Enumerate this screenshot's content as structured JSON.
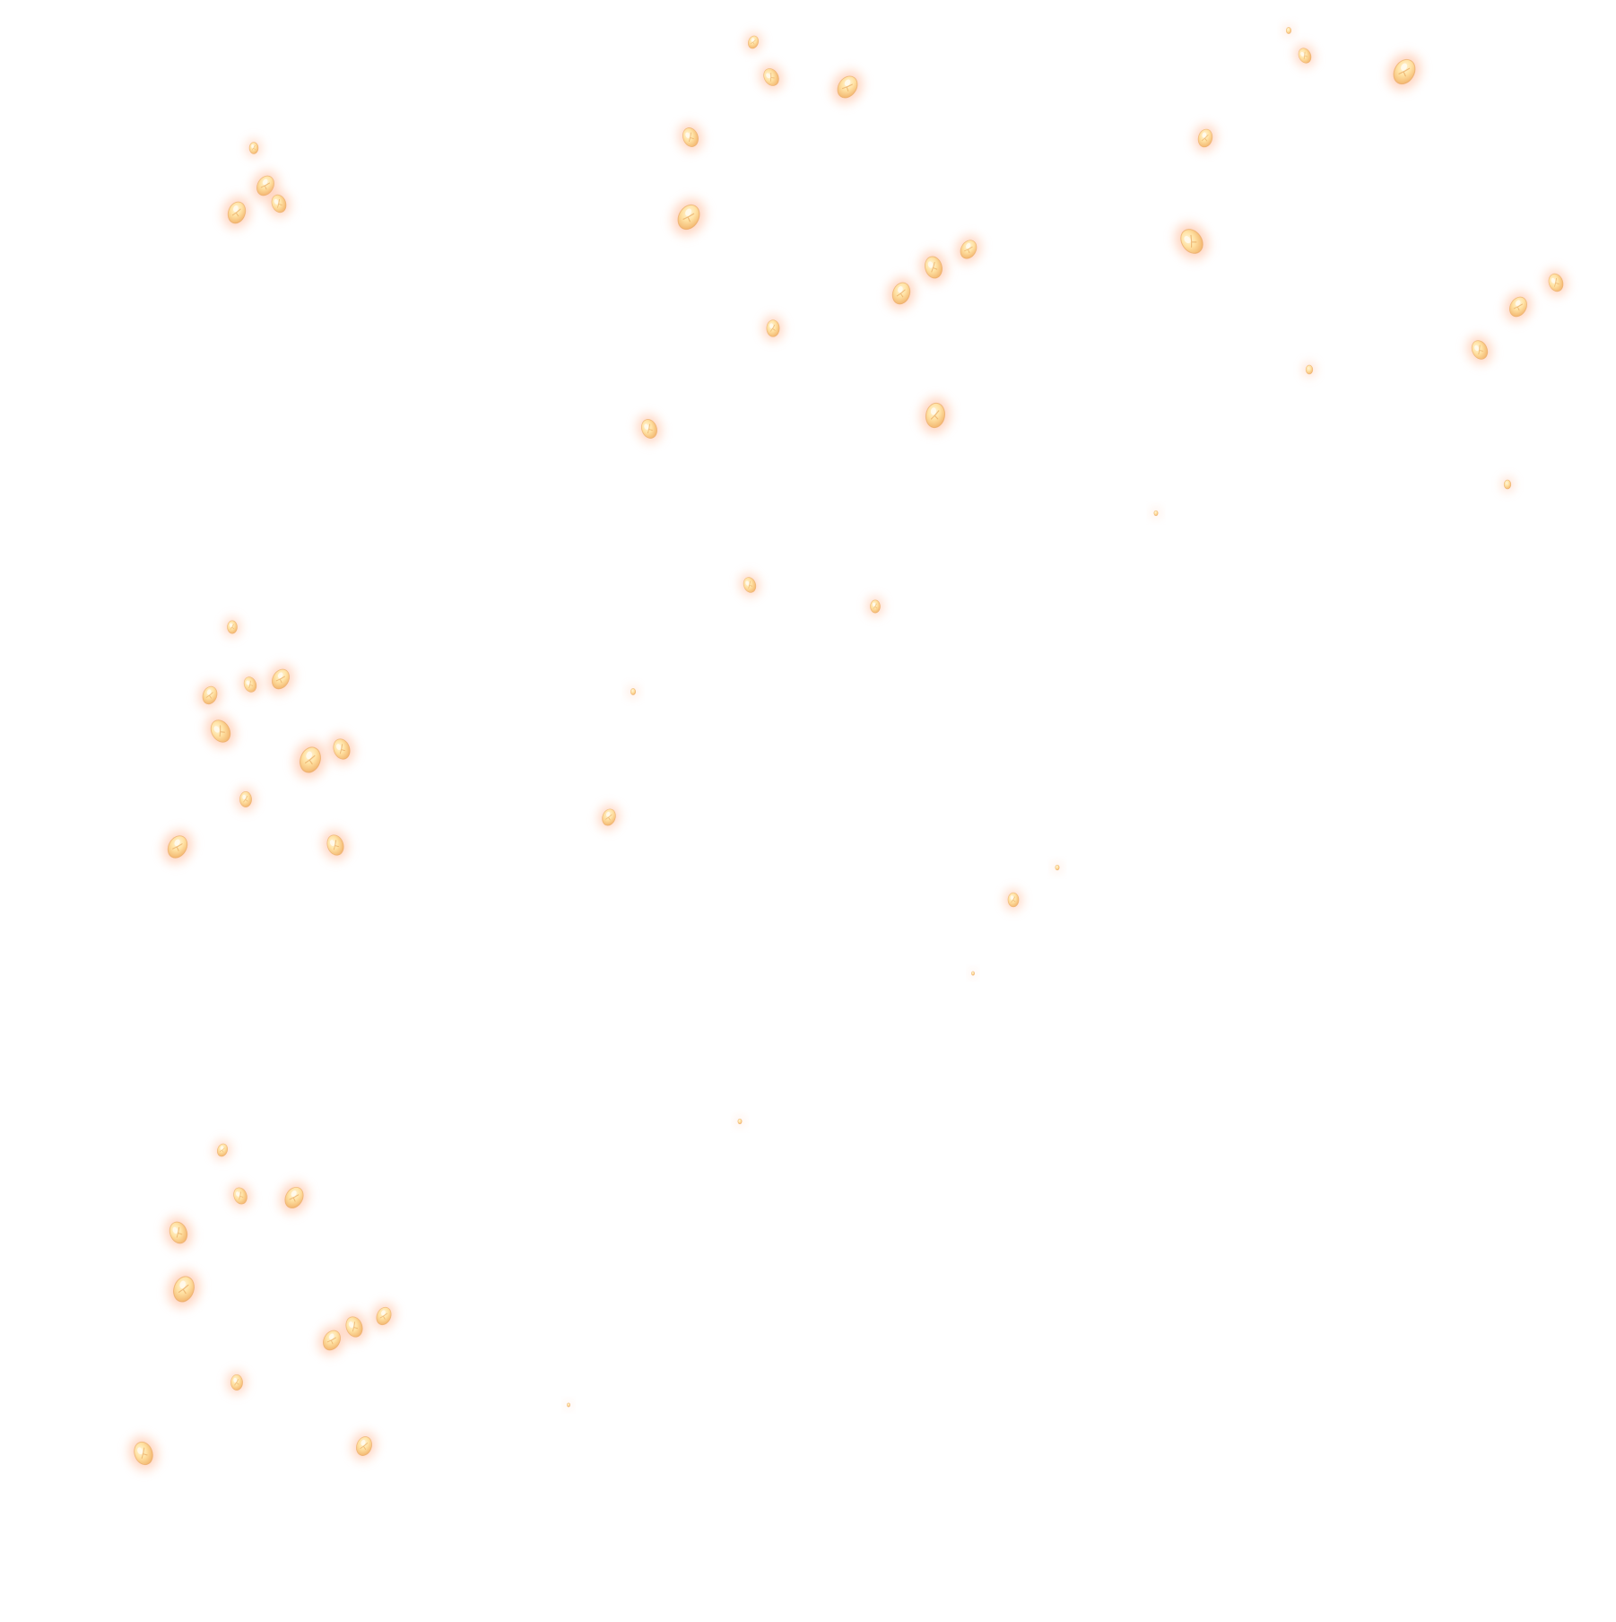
{
  "colors": {
    "background": "#ffffff",
    "glow": "#ffb08a",
    "petal_light": "#ffe9b8",
    "petal_mid": "#f8c982",
    "petal_dark": "#e8a860",
    "petal_edge": "#e7a45c"
  },
  "subject": {
    "icon": "glowing-petal-icon"
  }
}
